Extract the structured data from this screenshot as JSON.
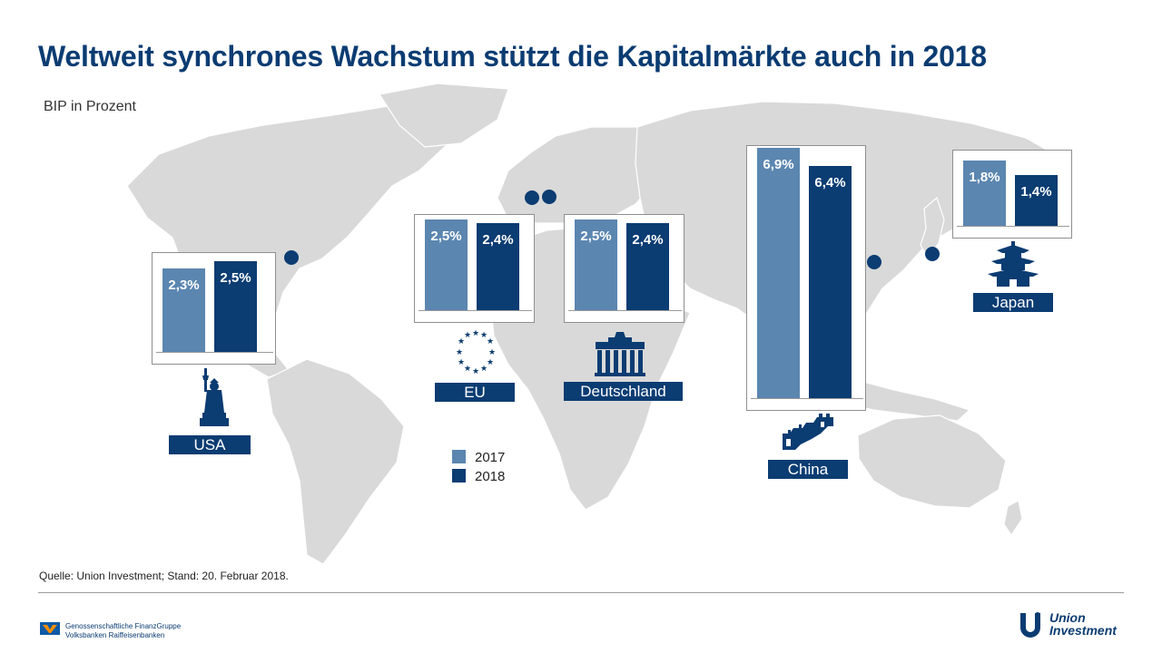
{
  "title": "Weltweit synchrones Wachstum stützt die Kapitalmärkte auch in 2018",
  "subtitle": "BIP in Prozent",
  "colors": {
    "y2017": "#5b86b0",
    "y2018": "#0b3c72",
    "map": "#d9d9d9"
  },
  "chart_data": {
    "type": "bar",
    "title": "Weltweit synchrones Wachstum stützt die Kapitalmärkte auch in 2018",
    "ylabel": "BIP in Prozent",
    "categories": [
      "USA",
      "EU",
      "Deutschland",
      "China",
      "Japan"
    ],
    "series": [
      {
        "name": "2017",
        "values": [
          2.3,
          2.5,
          2.5,
          6.9,
          1.8
        ]
      },
      {
        "name": "2018",
        "values": [
          2.5,
          2.4,
          2.4,
          6.4,
          1.4
        ]
      }
    ],
    "data_labels": {
      "2017": [
        "2,3%",
        "2,5%",
        "2,5%",
        "6,9%",
        "1,8%"
      ],
      "2018": [
        "2,5%",
        "2,4%",
        "2,4%",
        "6,4%",
        "1,4%"
      ]
    },
    "legend": {
      "entries": [
        "2017",
        "2018"
      ],
      "position": "bottom-center"
    }
  },
  "legend": {
    "y2017": "2017",
    "y2018": "2018"
  },
  "source": "Quelle: Union Investment;  Stand: 20. Februar 2018.",
  "footer": {
    "org_line1": "Genossenschaftliche FinanzGruppe",
    "org_line2": "Volksbanken Raiffeisenbanken"
  },
  "brand": {
    "line1": "Union",
    "line2": "Investment"
  },
  "icons": [
    "statue-of-liberty-icon",
    "eu-stars-icon",
    "brandenburg-gate-icon",
    "great-wall-icon",
    "pagoda-icon"
  ]
}
